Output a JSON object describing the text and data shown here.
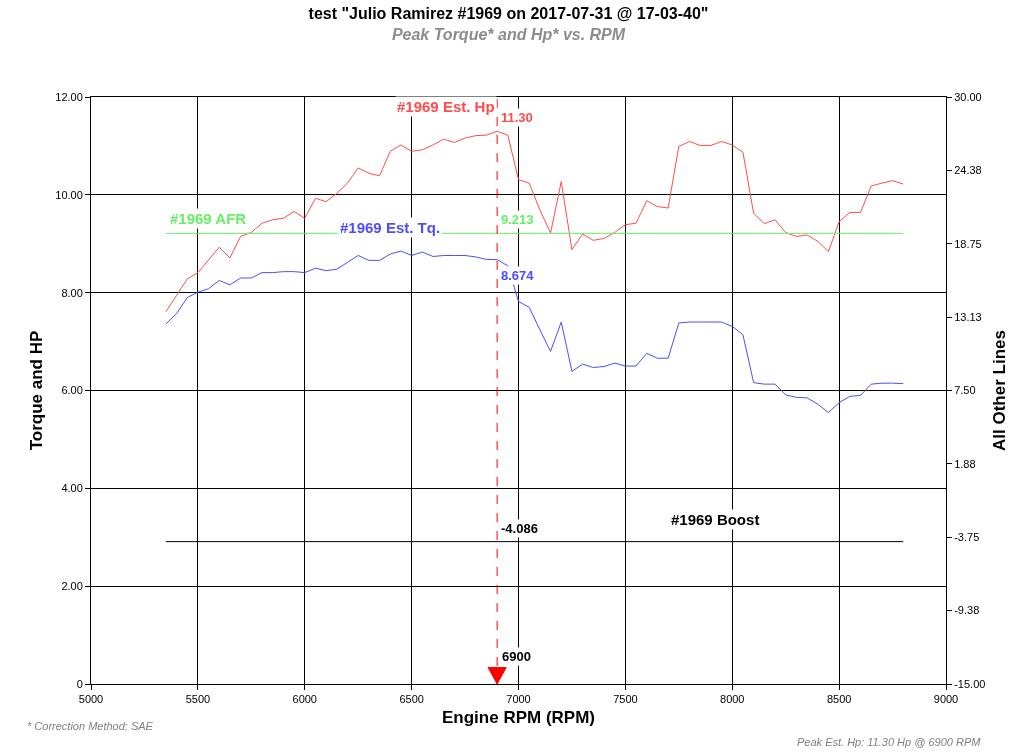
{
  "chart_data": {
    "type": "line",
    "title": "test \"Julio Ramirez #1969 on 2017-07-31 @ 17-03-40\"",
    "subtitle": "Peak Torque* and Hp* vs. RPM",
    "xlabel": "Engine RPM (RPM)",
    "ylabel": "Torque and HP",
    "y2label": "All Other Lines",
    "x": [
      5350,
      5400,
      5450,
      5500,
      5550,
      5600,
      5650,
      5700,
      5750,
      5800,
      5850,
      5900,
      5950,
      6000,
      6050,
      6100,
      6150,
      6200,
      6250,
      6300,
      6350,
      6400,
      6450,
      6500,
      6550,
      6600,
      6650,
      6700,
      6750,
      6800,
      6850,
      6900,
      6950,
      7000,
      7050,
      7100,
      7150,
      7200,
      7250,
      7300,
      7350,
      7400,
      7450,
      7500,
      7550,
      7600,
      7650,
      7700,
      7750,
      7800,
      7850,
      7900,
      7950,
      8000,
      8050,
      8100,
      8150,
      8200,
      8250,
      8300,
      8350,
      8400,
      8450,
      8500,
      8550,
      8600,
      8650,
      8700,
      8750,
      8800
    ],
    "series": [
      {
        "name": "#1969 Est. Hp",
        "color": "#ff4d4d",
        "values": [
          7.61,
          7.94,
          8.28,
          8.41,
          8.67,
          8.93,
          8.71,
          9.15,
          9.23,
          9.42,
          9.49,
          9.52,
          9.66,
          9.52,
          9.93,
          9.86,
          10.03,
          10.24,
          10.55,
          10.44,
          10.39,
          10.89,
          11.02,
          10.89,
          10.92,
          11.02,
          11.14,
          11.07,
          11.16,
          11.21,
          11.22,
          11.3,
          11.22,
          10.31,
          10.24,
          9.69,
          9.22,
          10.27,
          8.88,
          9.2,
          9.07,
          9.11,
          9.23,
          9.39,
          9.42,
          9.88,
          9.76,
          9.73,
          10.99,
          11.09,
          11.01,
          11.01,
          11.09,
          11.02,
          10.87,
          9.62,
          9.41,
          9.49,
          9.23,
          9.15,
          9.18,
          9.05,
          8.84,
          9.45,
          9.64,
          9.64,
          10.18,
          10.24,
          10.29,
          10.22
        ],
        "value_labels": [
          null,
          null,
          null,
          null,
          null,
          null,
          null,
          null,
          null,
          null,
          null,
          null,
          null,
          null,
          null,
          null,
          null,
          null,
          null,
          null,
          null,
          null,
          null,
          null,
          null,
          null,
          null,
          null,
          null,
          null,
          null,
          "11.30",
          null,
          null,
          null,
          null,
          null,
          null,
          null,
          null,
          null,
          null,
          null,
          null,
          null,
          null,
          null,
          null,
          null,
          null,
          null,
          null,
          null,
          null,
          null,
          null,
          null,
          null,
          null,
          null,
          null,
          null,
          null,
          null,
          null,
          null,
          null,
          null,
          null,
          null
        ]
      },
      {
        "name": "#1969 AFR",
        "color": "#66ee66",
        "x": [
          5350,
          6900,
          8800
        ],
        "values": [
          9.213,
          9.213,
          9.213
        ],
        "value_labels": [
          null,
          "9.213",
          null
        ]
      },
      {
        "name": "#1969 Est. Tq.",
        "color": "#4d4dff",
        "values": [
          7.36,
          7.57,
          7.9,
          8.01,
          8.08,
          8.25,
          8.16,
          8.3,
          8.3,
          8.41,
          8.41,
          8.43,
          8.43,
          8.41,
          8.5,
          8.45,
          8.48,
          8.62,
          8.76,
          8.66,
          8.66,
          8.79,
          8.85,
          8.76,
          8.83,
          8.74,
          8.76,
          8.76,
          8.76,
          8.73,
          8.68,
          8.674,
          8.55,
          7.82,
          7.7,
          7.24,
          6.8,
          7.4,
          6.39,
          6.54,
          6.47,
          6.49,
          6.56,
          6.5,
          6.5,
          6.76,
          6.66,
          6.66,
          7.38,
          7.4,
          7.4,
          7.4,
          7.4,
          7.31,
          7.14,
          6.16,
          6.13,
          6.13,
          5.91,
          5.86,
          5.85,
          5.72,
          5.55,
          5.75,
          5.88,
          5.9,
          6.13,
          6.15,
          6.15,
          6.14
        ],
        "value_labels": [
          null,
          null,
          null,
          null,
          null,
          null,
          null,
          null,
          null,
          null,
          null,
          null,
          null,
          null,
          null,
          null,
          null,
          null,
          null,
          null,
          null,
          null,
          null,
          null,
          null,
          null,
          null,
          null,
          null,
          null,
          null,
          "8.674",
          null,
          null,
          null,
          null,
          null,
          null,
          null,
          null,
          null,
          null,
          null,
          null,
          null,
          null,
          null,
          null,
          null,
          null,
          null,
          null,
          null,
          null,
          null,
          null,
          null,
          null,
          null,
          null,
          null,
          null,
          null,
          null,
          null,
          null,
          null,
          null,
          null,
          null
        ]
      },
      {
        "name": "#1969 Boost",
        "color": "#000000",
        "axis": "y2",
        "x": [
          5350,
          6900,
          8800
        ],
        "values": [
          -4.086,
          -4.086,
          -4.086
        ],
        "value_labels": [
          null,
          "-4.086",
          null
        ]
      }
    ],
    "xlim": [
      5000,
      9000
    ],
    "xticks": [
      5000,
      5500,
      6000,
      6500,
      7000,
      7500,
      8000,
      8500,
      9000
    ],
    "ylim": [
      0,
      12
    ],
    "yticks": [
      0,
      {
        "value": 2,
        "label": "2.00"
      },
      {
        "value": 4,
        "label": "4.00"
      },
      {
        "value": 6,
        "label": "6.00"
      },
      {
        "value": 8,
        "label": "8.00"
      },
      {
        "value": 10,
        "label": "10.00"
      },
      {
        "value": 12,
        "label": "12.00"
      }
    ],
    "y2lim": [
      -15,
      30
    ],
    "y2ticks": [
      {
        "value": -15,
        "label": "-15.00"
      },
      {
        "value": -9.375,
        "label": "-9.38"
      },
      {
        "value": -3.75,
        "label": "-3.75"
      },
      {
        "value": 1.875,
        "label": "1.88"
      },
      {
        "value": 7.5,
        "label": "7.50"
      },
      {
        "value": 13.125,
        "label": "13.13"
      },
      {
        "value": 18.75,
        "label": "18.75"
      },
      {
        "value": 24.375,
        "label": "24.38"
      },
      {
        "value": 30,
        "label": "30.00"
      }
    ],
    "ref_lines": [
      {
        "axis": "x",
        "value": 6900,
        "label": "6900",
        "color": "#ff0000",
        "line_style": "dashed"
      }
    ],
    "annotations": [
      "* Correction Method: SAE",
      "Peak Est. Hp: 11.30 Hp @ 6900 RPM"
    ],
    "grid": true,
    "legend": false,
    "marker": "none",
    "line_style": "solid"
  }
}
